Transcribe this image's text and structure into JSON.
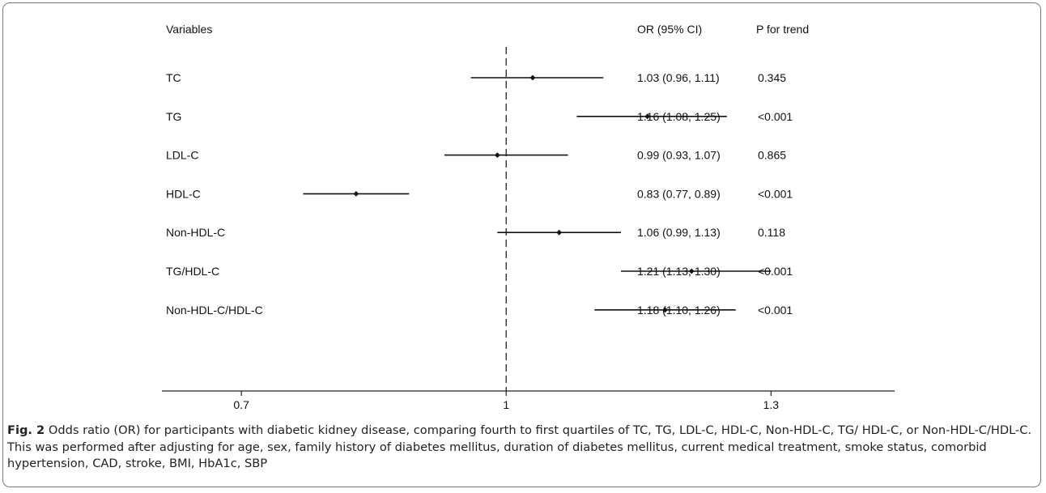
{
  "chart_data": {
    "type": "forest",
    "headers": {
      "variables": "Variables",
      "or": "OR (95% CI)",
      "p": "P for trend"
    },
    "rows": [
      {
        "label": "TC",
        "or": 1.03,
        "lower": 0.96,
        "upper": 1.11,
        "or_text": "1.03 (0.96, 1.11)",
        "p_text": "0.345"
      },
      {
        "label": "TG",
        "or": 1.16,
        "lower": 1.08,
        "upper": 1.25,
        "or_text": "1.16 (1.08, 1.25)",
        "p_text": "<0.001"
      },
      {
        "label": "LDL-C",
        "or": 0.99,
        "lower": 0.93,
        "upper": 1.07,
        "or_text": "0.99 (0.93, 1.07)",
        "p_text": "0.865"
      },
      {
        "label": "HDL-C",
        "or": 0.83,
        "lower": 0.77,
        "upper": 0.89,
        "or_text": "0.83 (0.77, 0.89)",
        "p_text": "<0.001"
      },
      {
        "label": "Non-HDL-C",
        "or": 1.06,
        "lower": 0.99,
        "upper": 1.13,
        "or_text": "1.06 (0.99, 1.13)",
        "p_text": "0.118"
      },
      {
        "label": "TG/HDL-C",
        "or": 1.21,
        "lower": 1.13,
        "upper": 1.3,
        "or_text": "1.21 (1.13, 1.30)",
        "p_text": "<0.001"
      },
      {
        "label": "Non-HDL-C/HDL-C",
        "or": 1.18,
        "lower": 1.1,
        "upper": 1.26,
        "or_text": "1.18 (1.10, 1.26)",
        "p_text": "<0.001"
      }
    ],
    "x_ticks": [
      0.7,
      1,
      1.3
    ],
    "x_tick_labels": [
      "0.7",
      "1",
      "1.3"
    ],
    "reference_line": 1,
    "xlim": [
      0.61,
      1.44
    ],
    "colors": {
      "marks": "#111111",
      "reference": "#333333"
    }
  },
  "caption": {
    "label": "Fig. 2",
    "text": " Odds ratio (OR) for participants with diabetic kidney disease, comparing fourth to first quartiles of TC, TG, LDL-C, HDL-C, Non-HDL-C, TG/ HDL-C, or Non-HDL-C/HDL-C. This was performed after adjusting for age, sex, family history of diabetes mellitus, duration of diabetes mellitus, current medical treatment, smoke status, comorbid hypertension, CAD, stroke, BMI, HbA1c, SBP"
  }
}
